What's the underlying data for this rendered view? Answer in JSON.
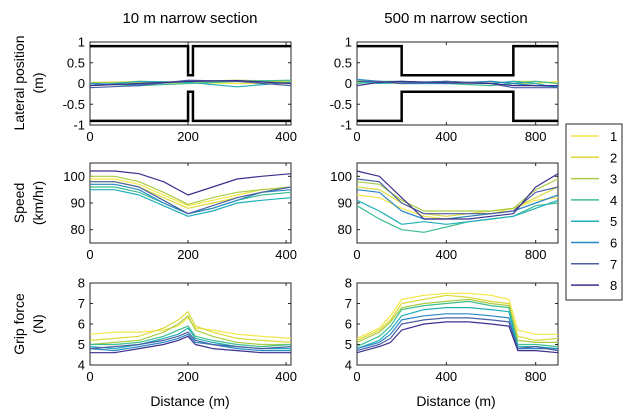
{
  "chart_data": {
    "type": "line",
    "series_names": [
      "1",
      "2",
      "3",
      "4",
      "5",
      "6",
      "7",
      "8"
    ],
    "series_colors": [
      "#f3e646",
      "#dcd93a",
      "#a9cc45",
      "#3fbf8f",
      "#21aeb9",
      "#2a87c5",
      "#4b5fa3",
      "#3c2f8e"
    ],
    "boundary_color": "#000000",
    "legend_position": "right",
    "columns": [
      {
        "title": "10 m narrow section",
        "xlim": [
          0,
          410
        ],
        "xticks": [
          "0",
          "200",
          "400"
        ],
        "xtick_values": [
          0,
          200,
          400
        ],
        "narrow_start": 200,
        "narrow_end": 210
      },
      {
        "title": "500 m narrow section",
        "xlim": [
          0,
          900
        ],
        "xticks": [
          "0",
          "400",
          "800"
        ],
        "xtick_values": [
          0,
          400,
          800
        ],
        "narrow_start": 200,
        "narrow_end": 700
      }
    ],
    "xlabel": "Distance (m)",
    "rows": [
      {
        "ylabel": [
          "Lateral position",
          "(m)"
        ],
        "ylim": [
          -1,
          1
        ],
        "yticks": [
          "1",
          "0.5",
          "0",
          "-0.5",
          "-1"
        ],
        "ytick_values": [
          1,
          0.5,
          0,
          -0.5,
          -1
        ],
        "boundaries": {
          "wide_upper": 0.9,
          "wide_lower": -0.9,
          "narrow_upper_col1": 0.2,
          "narrow_lower_col1": -0.2,
          "narrow_upper_col2": 0.2,
          "narrow_lower_col2": -0.2
        },
        "col1_x": [
          0,
          100,
          200,
          300,
          410
        ],
        "col1_series": [
          [
            -0.05,
            0.0,
            0.02,
            0.0,
            0.0
          ],
          [
            0.02,
            0.05,
            0.03,
            0.05,
            0.03
          ],
          [
            0.03,
            0.02,
            0.05,
            0.08,
            0.05
          ],
          [
            0.0,
            -0.05,
            0.0,
            0.05,
            0.08
          ],
          [
            -0.05,
            0.05,
            0.03,
            -0.08,
            0.03
          ],
          [
            0.0,
            -0.03,
            0.05,
            0.07,
            0.0
          ],
          [
            -0.1,
            -0.05,
            0.08,
            0.05,
            -0.05
          ],
          [
            -0.05,
            0.0,
            0.05,
            0.07,
            0.0
          ]
        ],
        "col2_x": [
          0,
          100,
          200,
          400,
          600,
          700,
          800,
          900
        ],
        "col2_series": [
          [
            0.05,
            0.0,
            0.05,
            0.0,
            0.05,
            0.0,
            0.0,
            0.05
          ],
          [
            0.03,
            0.05,
            0.0,
            0.05,
            0.0,
            0.05,
            0.05,
            0.0
          ],
          [
            0.08,
            0.02,
            0.0,
            0.0,
            0.05,
            0.0,
            -0.05,
            -0.05
          ],
          [
            0.0,
            0.05,
            0.05,
            0.0,
            -0.05,
            0.0,
            0.05,
            0.0
          ],
          [
            0.05,
            0.0,
            0.02,
            0.05,
            0.0,
            0.05,
            0.0,
            -0.1
          ],
          [
            0.1,
            0.05,
            0.0,
            0.0,
            0.05,
            0.0,
            -0.05,
            -0.08
          ],
          [
            0.05,
            0.05,
            0.0,
            0.05,
            0.0,
            -0.1,
            -0.1,
            -0.1
          ],
          [
            -0.05,
            0.03,
            0.05,
            0.02,
            0.0,
            -0.05,
            -0.05,
            -0.05
          ]
        ]
      },
      {
        "ylabel": [
          "Speed",
          "(km/hr)"
        ],
        "ylim": [
          75,
          105
        ],
        "yticks": [
          "100",
          "90",
          "80"
        ],
        "ytick_values": [
          100,
          90,
          80
        ],
        "col1_x": [
          0,
          50,
          100,
          150,
          200,
          250,
          300,
          350,
          410
        ],
        "col1_series": [
          [
            99,
            99,
            97,
            93,
            89,
            91,
            93,
            95,
            96
          ],
          [
            98,
            98,
            96,
            92,
            88,
            90,
            92,
            94,
            96
          ],
          [
            100,
            100,
            98,
            94,
            89.5,
            92,
            94,
            95,
            96
          ],
          [
            96,
            96,
            94,
            90,
            86,
            88,
            91,
            93,
            94
          ],
          [
            95,
            95,
            93,
            89,
            85,
            87,
            90,
            91,
            92
          ],
          [
            97,
            97,
            95,
            90,
            86,
            88,
            91,
            94,
            95
          ],
          [
            98,
            98,
            96,
            91,
            86,
            89,
            92,
            94,
            96
          ],
          [
            102,
            102,
            101,
            98,
            93,
            96,
            99,
            100,
            101
          ]
        ],
        "col2_x": [
          0,
          100,
          200,
          300,
          400,
          500,
          600,
          700,
          800,
          900
        ],
        "col2_series": [
          [
            93,
            92,
            88,
            85,
            84,
            85,
            86,
            88,
            91,
            92
          ],
          [
            96,
            95,
            90,
            86,
            85,
            86,
            87,
            88,
            92,
            96
          ],
          [
            98,
            97,
            91,
            87,
            87,
            87,
            87,
            88,
            95,
            99
          ],
          [
            89,
            84,
            80,
            79,
            81,
            83,
            84,
            85,
            89,
            90
          ],
          [
            91,
            87,
            82,
            83,
            82,
            83,
            84,
            85,
            88,
            91
          ],
          [
            95,
            94,
            87,
            84,
            84,
            85,
            86,
            87,
            90,
            93
          ],
          [
            99,
            98,
            90,
            86,
            86,
            86,
            86,
            87,
            94,
            96
          ],
          [
            102,
            100,
            92,
            84,
            84,
            84,
            85,
            86,
            96,
            101
          ]
        ]
      },
      {
        "ylabel": [
          "Grip force",
          "(N)"
        ],
        "ylim": [
          4,
          8
        ],
        "yticks": [
          "8",
          "7",
          "6",
          "5",
          "4"
        ],
        "ytick_values": [
          8,
          7,
          6,
          5,
          4
        ],
        "col1_x": [
          0,
          50,
          100,
          150,
          180,
          200,
          215,
          250,
          300,
          350,
          410
        ],
        "col1_series": [
          [
            5.5,
            5.6,
            5.6,
            5.7,
            5.9,
            6.3,
            5.8,
            5.7,
            5.5,
            5.4,
            5.3
          ],
          [
            5.2,
            5.3,
            5.4,
            5.8,
            6.2,
            6.6,
            5.9,
            5.6,
            5.3,
            5.2,
            5.1
          ],
          [
            5.0,
            5.1,
            5.2,
            5.6,
            6.0,
            6.4,
            5.7,
            5.4,
            5.1,
            5.0,
            5.0
          ],
          [
            5.0,
            5.0,
            5.1,
            5.4,
            5.7,
            5.9,
            5.4,
            5.2,
            5.0,
            4.9,
            5.0
          ],
          [
            4.9,
            4.8,
            5.0,
            5.3,
            5.5,
            5.8,
            5.3,
            5.1,
            4.9,
            4.8,
            4.8
          ],
          [
            4.8,
            4.7,
            4.9,
            5.1,
            5.3,
            5.5,
            5.1,
            5.0,
            4.8,
            4.7,
            4.7
          ],
          [
            4.8,
            4.9,
            5.0,
            5.2,
            5.4,
            5.6,
            5.2,
            5.0,
            4.9,
            4.8,
            4.9
          ],
          [
            4.6,
            4.6,
            4.8,
            5.0,
            5.2,
            5.4,
            5.0,
            4.8,
            4.7,
            4.6,
            4.6
          ]
        ],
        "col2_x": [
          0,
          100,
          150,
          200,
          300,
          400,
          500,
          600,
          680,
          720,
          800,
          900
        ],
        "col2_series": [
          [
            5.3,
            5.8,
            6.4,
            7.2,
            7.4,
            7.5,
            7.5,
            7.4,
            7.2,
            5.7,
            5.5,
            5.5
          ],
          [
            5.2,
            5.7,
            6.2,
            7.0,
            7.2,
            7.4,
            7.3,
            7.1,
            7.0,
            5.4,
            5.2,
            5.3
          ],
          [
            5.1,
            5.6,
            6.1,
            6.8,
            7.0,
            7.1,
            7.2,
            7.0,
            6.9,
            5.2,
            5.1,
            5.1
          ],
          [
            4.9,
            5.4,
            5.9,
            6.7,
            6.9,
            7.0,
            7.1,
            6.9,
            6.8,
            5.0,
            5.0,
            4.9
          ],
          [
            4.8,
            5.2,
            5.7,
            6.4,
            6.7,
            6.8,
            6.8,
            6.7,
            6.6,
            4.9,
            4.9,
            4.8
          ],
          [
            4.8,
            5.1,
            5.5,
            6.2,
            6.4,
            6.5,
            6.5,
            6.4,
            6.3,
            4.8,
            4.8,
            4.8
          ],
          [
            4.7,
            5.0,
            5.3,
            6.0,
            6.2,
            6.3,
            6.3,
            6.2,
            6.1,
            4.8,
            4.9,
            4.7
          ],
          [
            4.6,
            4.9,
            5.1,
            5.7,
            6.0,
            6.1,
            6.1,
            6.0,
            5.9,
            4.7,
            4.7,
            4.6
          ]
        ]
      }
    ]
  }
}
